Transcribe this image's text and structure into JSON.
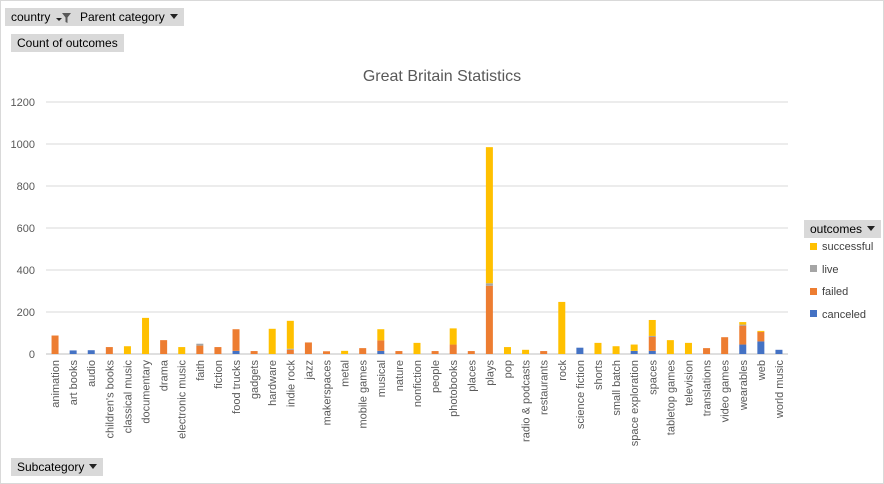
{
  "filters": {
    "country_label": "country",
    "parent_category_label": "Parent category"
  },
  "value_field_label": "Count of outcomes",
  "axis_field_label": "Subcategory",
  "legend_field_label": "outcomes",
  "colors": {
    "successful": "#ffc000",
    "live": "#a5a5a5",
    "failed": "#ed7d31",
    "canceled": "#4472c4"
  },
  "chart_data": {
    "type": "bar",
    "stacked": true,
    "title": "Great Britain Statistics",
    "xlabel": "",
    "ylabel": "",
    "ylim": [
      0,
      1200
    ],
    "yticks": [
      0,
      200,
      400,
      600,
      800,
      1000,
      1200
    ],
    "grid": true,
    "legend_position": "right",
    "categories": [
      "animation",
      "art books",
      "audio",
      "children's books",
      "classical music",
      "documentary",
      "drama",
      "electronic music",
      "faith",
      "fiction",
      "food trucks",
      "gadgets",
      "hardware",
      "indie rock",
      "jazz",
      "makerspaces",
      "metal",
      "mobile games",
      "musical",
      "nature",
      "nonfiction",
      "people",
      "photobooks",
      "places",
      "plays",
      "pop",
      "radio & podcasts",
      "restaurants",
      "rock",
      "science fiction",
      "shorts",
      "small batch",
      "space exploration",
      "spaces",
      "tabletop games",
      "television",
      "translations",
      "video games",
      "wearables",
      "web",
      "world music"
    ],
    "series": [
      {
        "name": "canceled",
        "values": [
          0,
          17,
          18,
          0,
          0,
          0,
          0,
          0,
          0,
          0,
          15,
          0,
          0,
          0,
          0,
          0,
          0,
          0,
          15,
          0,
          0,
          0,
          0,
          0,
          0,
          0,
          0,
          0,
          0,
          30,
          0,
          0,
          15,
          15,
          0,
          0,
          0,
          0,
          45,
          60,
          20
        ]
      },
      {
        "name": "failed",
        "values": [
          88,
          0,
          0,
          33,
          0,
          0,
          66,
          0,
          40,
          33,
          103,
          14,
          0,
          20,
          55,
          13,
          0,
          28,
          50,
          14,
          0,
          14,
          45,
          14,
          325,
          0,
          0,
          14,
          0,
          0,
          0,
          0,
          0,
          66,
          0,
          0,
          28,
          80,
          90,
          45,
          0
        ]
      },
      {
        "name": "live",
        "values": [
          0,
          0,
          0,
          0,
          0,
          0,
          0,
          0,
          9,
          0,
          0,
          0,
          0,
          5,
          0,
          0,
          0,
          0,
          0,
          0,
          0,
          0,
          0,
          0,
          12,
          0,
          0,
          0,
          0,
          0,
          0,
          0,
          0,
          5,
          0,
          0,
          0,
          0,
          5,
          0,
          0
        ]
      },
      {
        "name": "successful",
        "values": [
          0,
          0,
          0,
          0,
          37,
          172,
          0,
          33,
          0,
          0,
          0,
          0,
          120,
          133,
          0,
          0,
          15,
          0,
          53,
          0,
          53,
          0,
          77,
          0,
          648,
          33,
          20,
          0,
          248,
          0,
          53,
          37,
          30,
          76,
          66,
          53,
          0,
          0,
          12,
          5,
          0
        ]
      }
    ]
  }
}
